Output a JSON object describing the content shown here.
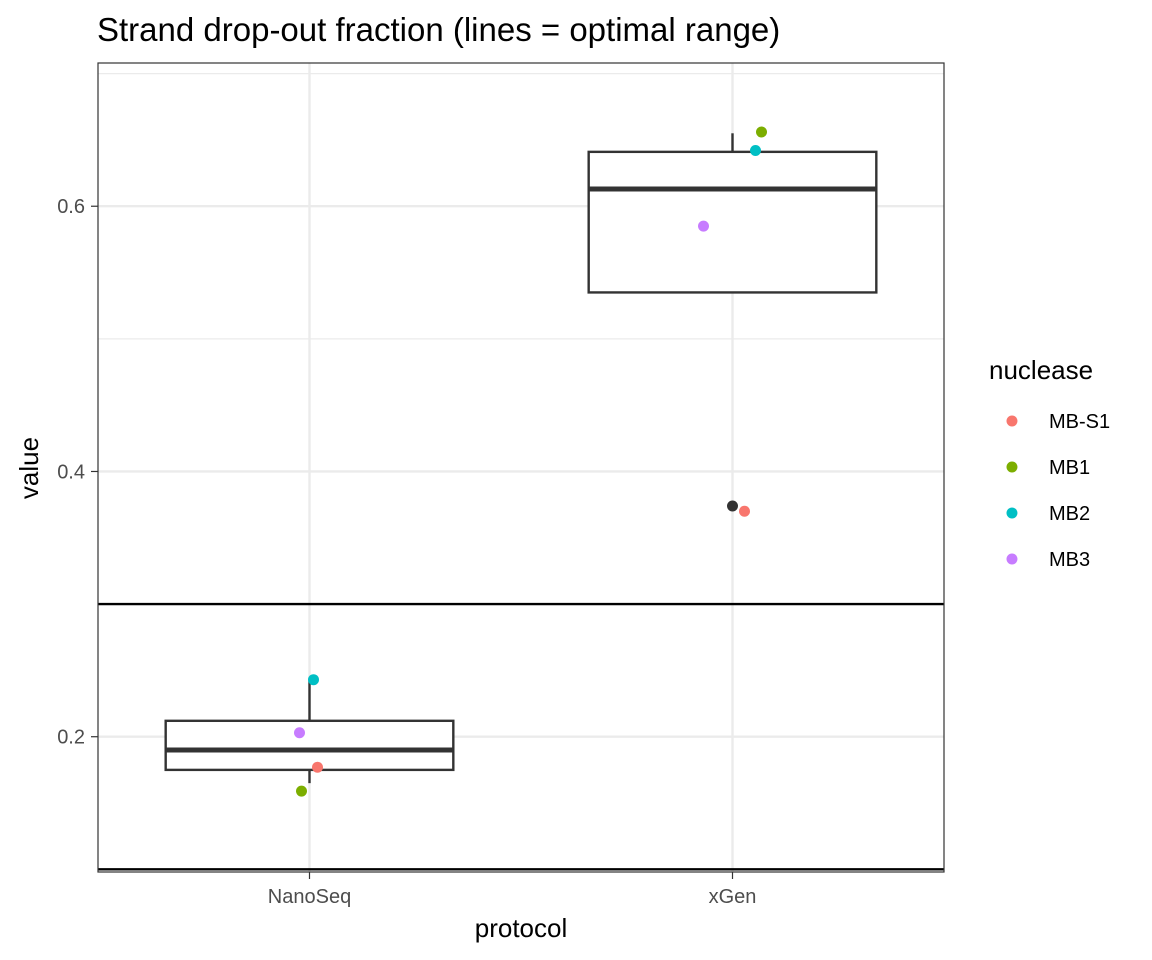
{
  "chart_data": {
    "type": "box",
    "title": "Strand drop-out fraction (lines = optimal range)",
    "xlabel": "protocol",
    "ylabel": "value",
    "categories": [
      "NanoSeq",
      "xGen"
    ],
    "ylim": [
      0.098,
      0.708
    ],
    "yticks": [
      0.2,
      0.4,
      0.6
    ],
    "ytick_labels": [
      "0.2",
      "0.4",
      "0.6"
    ],
    "grid": true,
    "reference_lines": [
      0.1,
      0.3
    ],
    "boxes": [
      {
        "category": "NanoSeq",
        "whisker_low": 0.165,
        "q1": 0.175,
        "median": 0.19,
        "q3": 0.212,
        "whisker_high": 0.242,
        "outliers": []
      },
      {
        "category": "xGen",
        "whisker_low": 0.535,
        "q1": 0.535,
        "median": 0.613,
        "q3": 0.641,
        "whisker_high": 0.655,
        "outliers": [
          0.374
        ]
      }
    ],
    "points": [
      {
        "category": "NanoSeq",
        "nuclease": "MB-S1",
        "value": 0.177
      },
      {
        "category": "NanoSeq",
        "nuclease": "MB1",
        "value": 0.159
      },
      {
        "category": "NanoSeq",
        "nuclease": "MB2",
        "value": 0.243
      },
      {
        "category": "NanoSeq",
        "nuclease": "MB3",
        "value": 0.203
      },
      {
        "category": "xGen",
        "nuclease": "MB-S1",
        "value": 0.37
      },
      {
        "category": "xGen",
        "nuclease": "MB1",
        "value": 0.656
      },
      {
        "category": "xGen",
        "nuclease": "MB2",
        "value": 0.642
      },
      {
        "category": "xGen",
        "nuclease": "MB3",
        "value": 0.585
      }
    ],
    "legend": {
      "title": "nuclease",
      "placement": "right",
      "entries": [
        {
          "label": "MB-S1",
          "color": "#f8766d"
        },
        {
          "label": "MB1",
          "color": "#7cae00"
        },
        {
          "label": "MB2",
          "color": "#00bfc4"
        },
        {
          "label": "MB3",
          "color": "#c77cff"
        }
      ]
    },
    "colors": {
      "box_line": "#333333",
      "reference_line": "#000000",
      "grid": "#ebebeb",
      "panel_border": "#333333",
      "outlier": "#333333"
    }
  }
}
